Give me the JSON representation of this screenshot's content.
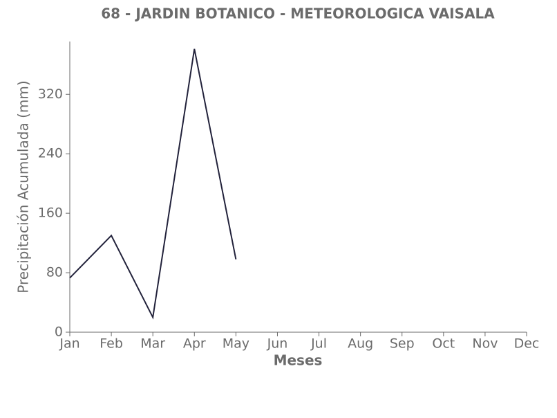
{
  "chart_data": {
    "type": "line",
    "title": "68 - JARDIN BOTANICO - METEOROLOGICA VAISALA",
    "x_label": "Meses",
    "y_label": "Precipitación Acumulada (mm)",
    "categories": [
      "Jan",
      "Feb",
      "Mar",
      "Apr",
      "May",
      "Jun",
      "Jul",
      "Aug",
      "Sep",
      "Oct",
      "Nov",
      "Dec"
    ],
    "values": [
      73,
      130,
      20,
      381,
      98,
      null,
      null,
      null,
      null,
      null,
      null,
      null
    ],
    "color": "#22223b",
    "ylim": [
      0,
      391
    ],
    "yticks": [
      0,
      80,
      160,
      240,
      320
    ]
  }
}
